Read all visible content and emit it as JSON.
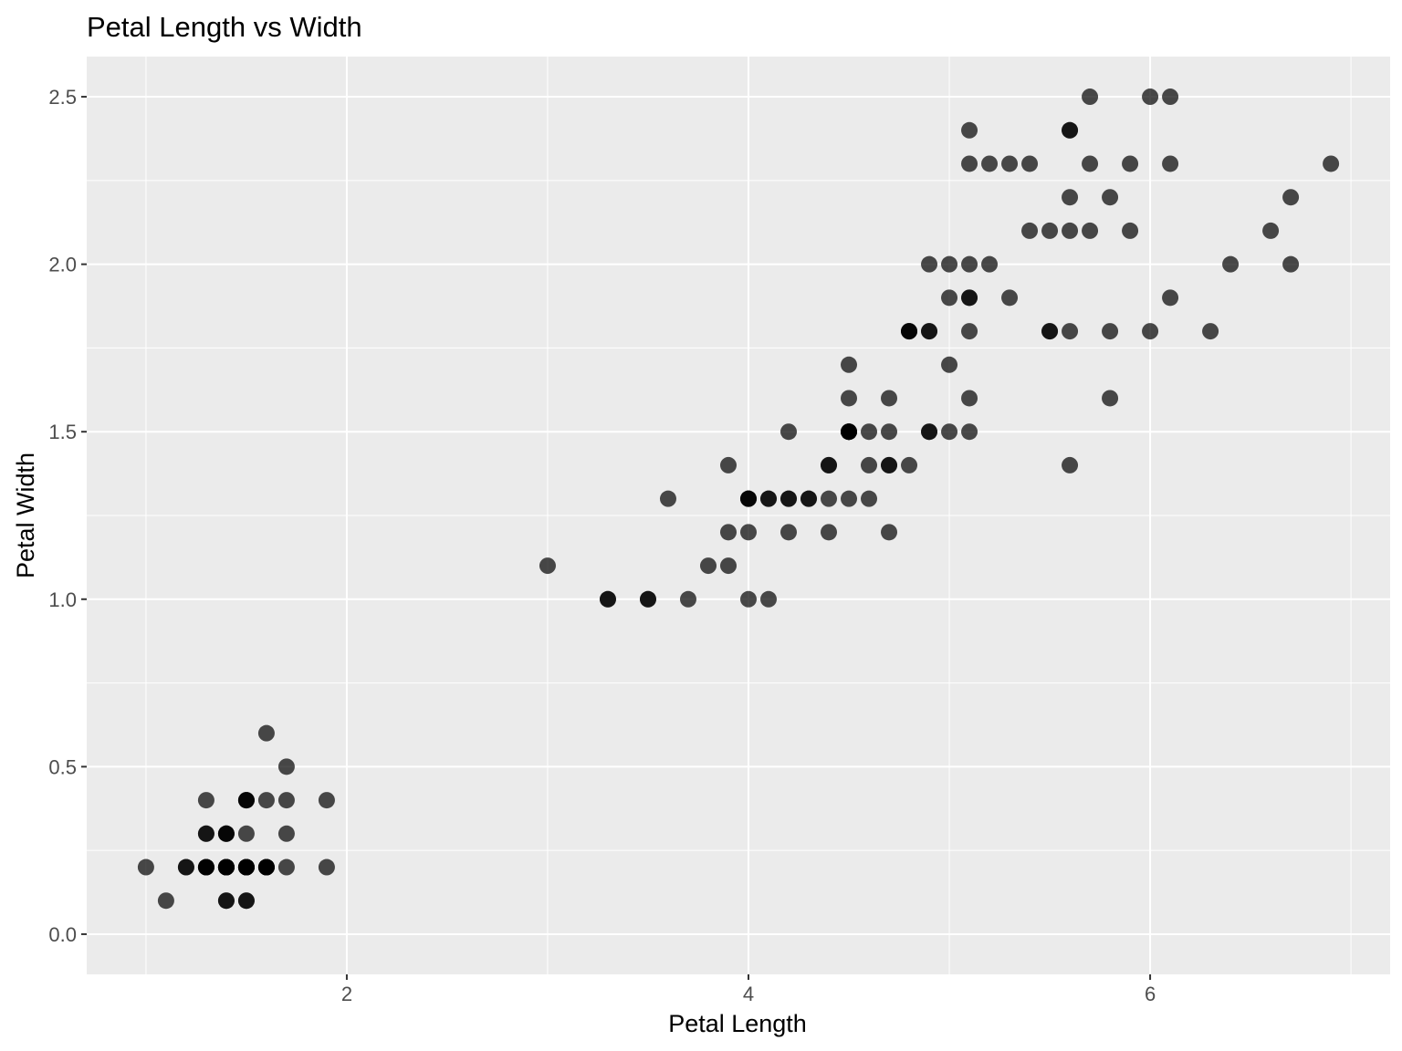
{
  "chart_data": {
    "type": "scatter",
    "title": "Petal Length vs Width",
    "xlabel": "Petal Length",
    "ylabel": "Petal Width",
    "xlim": [
      0.705,
      7.195
    ],
    "ylim": [
      -0.12,
      2.62
    ],
    "x_ticks": [
      2,
      4,
      6
    ],
    "x_tick_labels": [
      "2",
      "4",
      "6"
    ],
    "x_minor_ticks": [
      1,
      3,
      5,
      7
    ],
    "y_ticks": [
      0.0,
      0.5,
      1.0,
      1.5,
      2.0,
      2.5
    ],
    "y_tick_labels": [
      "0.0",
      "0.5",
      "1.0",
      "1.5",
      "2.0",
      "2.5"
    ],
    "y_minor_ticks": [
      0.25,
      0.75,
      1.25,
      1.75,
      2.25
    ],
    "grid": true,
    "point_color": "#000000",
    "point_alpha": 0.7,
    "panel_color": "#ebebeb",
    "grid_color": "#ffffff",
    "series": [
      {
        "points": [
          [
            1.4,
            0.2
          ],
          [
            1.4,
            0.2
          ],
          [
            1.3,
            0.2
          ],
          [
            1.5,
            0.2
          ],
          [
            1.4,
            0.2
          ],
          [
            1.7,
            0.4
          ],
          [
            1.4,
            0.3
          ],
          [
            1.5,
            0.2
          ],
          [
            1.4,
            0.2
          ],
          [
            1.5,
            0.1
          ],
          [
            1.5,
            0.2
          ],
          [
            1.6,
            0.2
          ],
          [
            1.4,
            0.1
          ],
          [
            1.1,
            0.1
          ],
          [
            1.2,
            0.2
          ],
          [
            1.5,
            0.4
          ],
          [
            1.3,
            0.4
          ],
          [
            1.4,
            0.3
          ],
          [
            1.7,
            0.3
          ],
          [
            1.5,
            0.3
          ],
          [
            1.7,
            0.2
          ],
          [
            1.5,
            0.4
          ],
          [
            1.0,
            0.2
          ],
          [
            1.7,
            0.5
          ],
          [
            1.9,
            0.2
          ],
          [
            1.6,
            0.2
          ],
          [
            1.6,
            0.4
          ],
          [
            1.5,
            0.2
          ],
          [
            1.4,
            0.2
          ],
          [
            1.6,
            0.2
          ],
          [
            1.6,
            0.2
          ],
          [
            1.5,
            0.4
          ],
          [
            1.5,
            0.1
          ],
          [
            1.4,
            0.2
          ],
          [
            1.5,
            0.2
          ],
          [
            1.2,
            0.2
          ],
          [
            1.3,
            0.2
          ],
          [
            1.4,
            0.1
          ],
          [
            1.3,
            0.2
          ],
          [
            1.5,
            0.2
          ],
          [
            1.3,
            0.3
          ],
          [
            1.3,
            0.3
          ],
          [
            1.3,
            0.2
          ],
          [
            1.6,
            0.6
          ],
          [
            1.9,
            0.4
          ],
          [
            1.4,
            0.3
          ],
          [
            1.6,
            0.2
          ],
          [
            1.4,
            0.2
          ],
          [
            1.5,
            0.2
          ],
          [
            1.4,
            0.2
          ],
          [
            4.7,
            1.4
          ],
          [
            4.5,
            1.5
          ],
          [
            4.9,
            1.5
          ],
          [
            4.0,
            1.3
          ],
          [
            4.6,
            1.5
          ],
          [
            4.5,
            1.3
          ],
          [
            4.7,
            1.6
          ],
          [
            3.3,
            1.0
          ],
          [
            4.6,
            1.3
          ],
          [
            3.9,
            1.4
          ],
          [
            3.5,
            1.0
          ],
          [
            4.2,
            1.5
          ],
          [
            4.0,
            1.0
          ],
          [
            4.7,
            1.4
          ],
          [
            3.6,
            1.3
          ],
          [
            4.4,
            1.4
          ],
          [
            4.5,
            1.5
          ],
          [
            4.1,
            1.0
          ],
          [
            4.5,
            1.5
          ],
          [
            3.9,
            1.1
          ],
          [
            4.8,
            1.8
          ],
          [
            4.0,
            1.3
          ],
          [
            4.9,
            1.5
          ],
          [
            4.7,
            1.2
          ],
          [
            4.3,
            1.3
          ],
          [
            4.4,
            1.4
          ],
          [
            4.8,
            1.4
          ],
          [
            5.0,
            1.7
          ],
          [
            4.5,
            1.5
          ],
          [
            3.5,
            1.0
          ],
          [
            3.8,
            1.1
          ],
          [
            3.7,
            1.0
          ],
          [
            3.9,
            1.2
          ],
          [
            5.1,
            1.6
          ],
          [
            4.5,
            1.5
          ],
          [
            4.5,
            1.6
          ],
          [
            4.7,
            1.5
          ],
          [
            4.4,
            1.3
          ],
          [
            4.1,
            1.3
          ],
          [
            4.0,
            1.3
          ],
          [
            4.4,
            1.2
          ],
          [
            4.6,
            1.4
          ],
          [
            4.0,
            1.2
          ],
          [
            3.3,
            1.0
          ],
          [
            4.2,
            1.3
          ],
          [
            4.2,
            1.2
          ],
          [
            4.2,
            1.3
          ],
          [
            4.3,
            1.3
          ],
          [
            3.0,
            1.1
          ],
          [
            4.1,
            1.3
          ],
          [
            6.0,
            2.5
          ],
          [
            5.1,
            1.9
          ],
          [
            5.9,
            2.1
          ],
          [
            5.6,
            1.8
          ],
          [
            5.8,
            2.2
          ],
          [
            6.6,
            2.1
          ],
          [
            4.5,
            1.7
          ],
          [
            6.3,
            1.8
          ],
          [
            5.8,
            1.8
          ],
          [
            6.1,
            2.5
          ],
          [
            5.1,
            2.0
          ],
          [
            5.3,
            1.9
          ],
          [
            5.5,
            2.1
          ],
          [
            5.0,
            2.0
          ],
          [
            5.1,
            2.4
          ],
          [
            5.3,
            2.3
          ],
          [
            5.5,
            1.8
          ],
          [
            6.7,
            2.2
          ],
          [
            6.9,
            2.3
          ],
          [
            5.0,
            1.5
          ],
          [
            5.7,
            2.3
          ],
          [
            4.9,
            2.0
          ],
          [
            6.7,
            2.0
          ],
          [
            4.9,
            1.8
          ],
          [
            5.7,
            2.1
          ],
          [
            6.0,
            1.8
          ],
          [
            4.8,
            1.8
          ],
          [
            4.9,
            1.8
          ],
          [
            5.6,
            2.1
          ],
          [
            5.8,
            1.6
          ],
          [
            6.1,
            1.9
          ],
          [
            6.4,
            2.0
          ],
          [
            5.6,
            2.2
          ],
          [
            5.1,
            1.5
          ],
          [
            5.6,
            1.4
          ],
          [
            6.1,
            2.3
          ],
          [
            5.6,
            2.4
          ],
          [
            5.5,
            1.8
          ],
          [
            4.8,
            1.8
          ],
          [
            5.4,
            2.1
          ],
          [
            5.6,
            2.4
          ],
          [
            5.1,
            2.3
          ],
          [
            5.1,
            1.9
          ],
          [
            5.9,
            2.3
          ],
          [
            5.7,
            2.5
          ],
          [
            5.2,
            2.3
          ],
          [
            5.0,
            1.9
          ],
          [
            5.2,
            2.0
          ],
          [
            5.4,
            2.3
          ],
          [
            5.1,
            1.8
          ]
        ]
      }
    ]
  }
}
